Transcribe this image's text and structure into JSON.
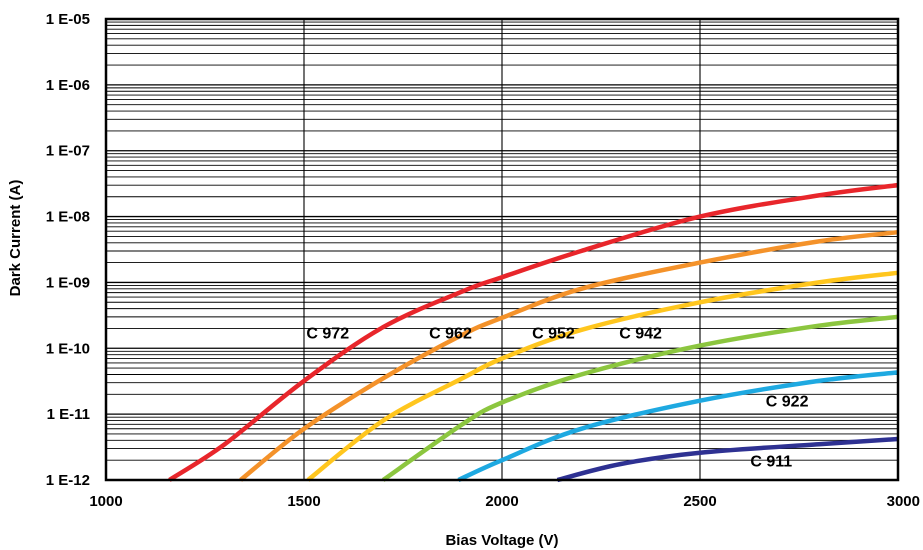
{
  "chart_data": {
    "type": "line",
    "title": "",
    "xlabel": "Bias Voltage (V)",
    "ylabel": "Dark Current (A)",
    "xlim": [
      1000,
      3000
    ],
    "ylim": [
      1e-12,
      1e-05
    ],
    "yscale": "log",
    "grid": true,
    "x_ticks": [
      1000,
      1500,
      2000,
      2500,
      3000
    ],
    "x_tick_labels": [
      "1000",
      "1500",
      "2000",
      "2500",
      "3000"
    ],
    "y_ticks": [
      1e-12,
      1e-11,
      1e-10,
      1e-09,
      1e-08,
      1e-07,
      1e-06,
      1e-05
    ],
    "y_tick_labels": [
      "1 E-12",
      "1 E-11",
      "1 E-10",
      "1 E-09",
      "1 E-08",
      "1 E-07",
      "1 E-06",
      "1 E-05"
    ],
    "series": [
      {
        "name": "C 972",
        "color": "#e8262b",
        "label_at": [
          1560,
          1.4e-10
        ],
        "x": [
          1160,
          1300,
          1500,
          1700,
          1900,
          2000,
          2200,
          2500,
          2800,
          3000
        ],
        "y": [
          1e-12,
          3.5e-12,
          3.2e-11,
          2.1e-10,
          7.3e-10,
          1.2e-09,
          3e-09,
          1e-08,
          2.1e-08,
          3e-08
        ]
      },
      {
        "name": "C 962",
        "color": "#f4922a",
        "label_at": [
          1870,
          1.4e-10
        ],
        "x": [
          1340,
          1500,
          1700,
          1900,
          2000,
          2200,
          2500,
          2800,
          3000
        ],
        "y": [
          1e-12,
          6e-12,
          3.5e-11,
          1.6e-10,
          2.9e-10,
          8e-10,
          2e-09,
          4.2e-09,
          5.8e-09
        ]
      },
      {
        "name": "C 952",
        "color": "#ffc61e",
        "label_at": [
          2130,
          1.4e-10
        ],
        "x": [
          1510,
          1700,
          1900,
          2000,
          2200,
          2500,
          2800,
          3000
        ],
        "y": [
          1e-12,
          8e-12,
          3.5e-11,
          7e-11,
          1.9e-10,
          5e-10,
          1e-09,
          1.4e-09
        ]
      },
      {
        "name": "C 942",
        "color": "#8cc63f",
        "label_at": [
          2350,
          1.4e-10
        ],
        "x": [
          1700,
          1900,
          2000,
          2200,
          2500,
          2800,
          3000
        ],
        "y": [
          1e-12,
          7e-12,
          1.5e-11,
          4e-11,
          1.1e-10,
          2.2e-10,
          3e-10
        ]
      },
      {
        "name": "C 922",
        "color": "#1ea9e1",
        "label_at": [
          2720,
          1.3e-11
        ],
        "x": [
          1890,
          2000,
          2200,
          2500,
          2800,
          3000
        ],
        "y": [
          1e-12,
          2e-12,
          6e-12,
          1.6e-11,
          3.2e-11,
          4.3e-11
        ]
      },
      {
        "name": "C 911",
        "color": "#2e3192",
        "label_at": [
          2680,
          1.6e-12
        ],
        "x": [
          2140,
          2300,
          2500,
          2800,
          3000
        ],
        "y": [
          1e-12,
          1.75e-12,
          2.6e-12,
          3.5e-12,
          4.2e-12
        ]
      }
    ]
  }
}
